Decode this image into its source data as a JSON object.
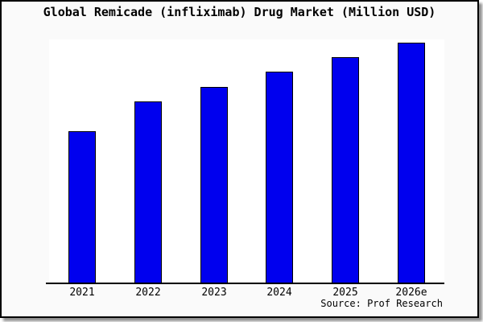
{
  "window": {
    "background": "#fafafa",
    "frame_border_color": "#000000",
    "plot_background": "#ffffff"
  },
  "chart_data": {
    "type": "bar",
    "title": "Global Remicade (infliximab) Drug Market (Million USD)",
    "categories": [
      "2021",
      "2022",
      "2023",
      "2024",
      "2025",
      "2026e"
    ],
    "values": [
      190,
      227,
      246,
      265,
      283,
      301
    ],
    "ylim": [
      0,
      305
    ],
    "y_axis": "unlabeled; values estimated from relative bar heights",
    "xlabel": "",
    "ylabel": "",
    "grid": false,
    "legend": false,
    "bar_color": "#0000ee",
    "bar_border_color": "#000000",
    "source": "Source: Prof Research"
  }
}
